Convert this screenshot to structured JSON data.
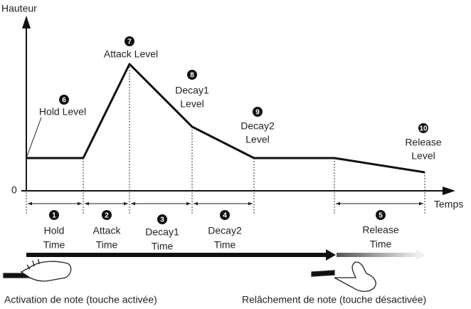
{
  "axes": {
    "y_label": "Hauteur",
    "x_label": "Temps",
    "origin": "0"
  },
  "levels": [
    {
      "number": "6",
      "lines": [
        "Hold Level"
      ]
    },
    {
      "number": "7",
      "lines": [
        "Attack Level"
      ]
    },
    {
      "number": "8",
      "lines": [
        "Decay1",
        "Level"
      ]
    },
    {
      "number": "9",
      "lines": [
        "Decay2",
        "Level"
      ]
    },
    {
      "number": "10",
      "lines": [
        "Release",
        "Level"
      ]
    }
  ],
  "times": [
    {
      "number": "1",
      "lines": [
        "Hold",
        "Time"
      ]
    },
    {
      "number": "2",
      "lines": [
        "Attack",
        "Time"
      ]
    },
    {
      "number": "3",
      "lines": [
        "Decay1",
        "Time"
      ]
    },
    {
      "number": "4",
      "lines": [
        "Decay2",
        "Time"
      ]
    },
    {
      "number": "5",
      "lines": [
        "Release",
        "Time"
      ]
    }
  ],
  "captions": {
    "note_on": "Activation de note (touche activée)",
    "note_off": "Relâchement de note (touche désactivée)"
  }
}
